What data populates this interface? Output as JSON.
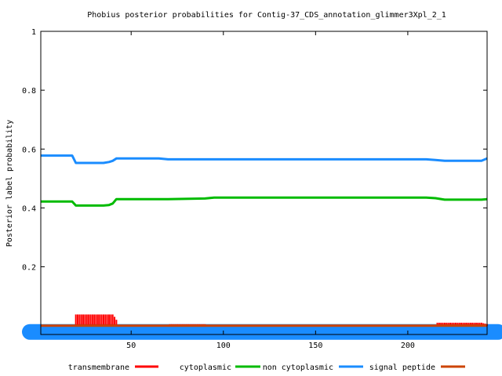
{
  "chart_data": {
    "type": "line",
    "title": "Phobius posterior probabilities for Contig-37_CDS_annotation_glimmer3Xpl_2_1",
    "ylabel": "Posterior label probability",
    "xlabel": "",
    "xlim": [
      1,
      243
    ],
    "ylim": [
      -0.03,
      1
    ],
    "x_ticks": [
      50,
      100,
      150,
      200
    ],
    "y_ticks": [
      0.2,
      0.4,
      0.6,
      0.8,
      1
    ],
    "y_tick_labels": [
      "0.2",
      "0.4",
      "0.6",
      "0.8",
      "1"
    ],
    "grid": false,
    "legend_position": "bottom",
    "series": [
      {
        "name": "transmembrane",
        "color": "#ff0000",
        "style": "impulses",
        "x": [
          1,
          19,
          20,
          40,
          41,
          42,
          43,
          70,
          71,
          90,
          91,
          215,
          216,
          240,
          243
        ],
        "y": [
          0,
          0,
          0.038,
          0.038,
          0.03,
          0.02,
          0,
          0,
          0.005,
          0.005,
          0,
          0,
          0.01,
          0.01,
          0.005
        ]
      },
      {
        "name": "cytoplasmic",
        "color": "#00bb00",
        "style": "line",
        "x": [
          1,
          18,
          20,
          35,
          38,
          40,
          42,
          70,
          90,
          95,
          210,
          215,
          220,
          240,
          243
        ],
        "y": [
          0.422,
          0.422,
          0.408,
          0.408,
          0.41,
          0.415,
          0.43,
          0.43,
          0.432,
          0.435,
          0.435,
          0.433,
          0.428,
          0.428,
          0.43
        ]
      },
      {
        "name": "non cytoplasmic",
        "color": "#1a8cff",
        "style": "line",
        "x": [
          1,
          18,
          20,
          35,
          38,
          40,
          42,
          65,
          70,
          90,
          210,
          215,
          220,
          240,
          243
        ],
        "y": [
          0.578,
          0.578,
          0.553,
          0.553,
          0.556,
          0.56,
          0.568,
          0.568,
          0.565,
          0.565,
          0.565,
          0.563,
          0.56,
          0.56,
          0.568
        ]
      },
      {
        "name": "signal peptide",
        "color": "#cc4400",
        "style": "line",
        "x": [
          1,
          243
        ],
        "y": [
          0,
          0
        ]
      }
    ]
  }
}
